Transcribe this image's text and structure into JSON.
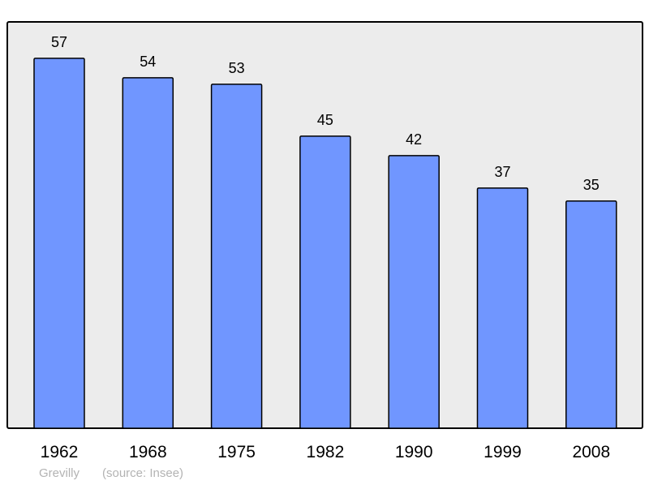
{
  "chart_data": {
    "type": "bar",
    "categories": [
      "1962",
      "1968",
      "1975",
      "1982",
      "1990",
      "1999",
      "2008"
    ],
    "values": [
      57,
      54,
      53,
      45,
      42,
      37,
      35
    ],
    "title": "",
    "xlabel": "",
    "ylabel": "",
    "ylim": [
      0,
      62.6
    ],
    "grid": false,
    "data_labels": true,
    "colors": {
      "bar": "#7096ff",
      "plot_background": "#ececec",
      "border": "#000000"
    }
  },
  "caption": {
    "place": "Grevilly",
    "source": "(source: Insee)"
  }
}
